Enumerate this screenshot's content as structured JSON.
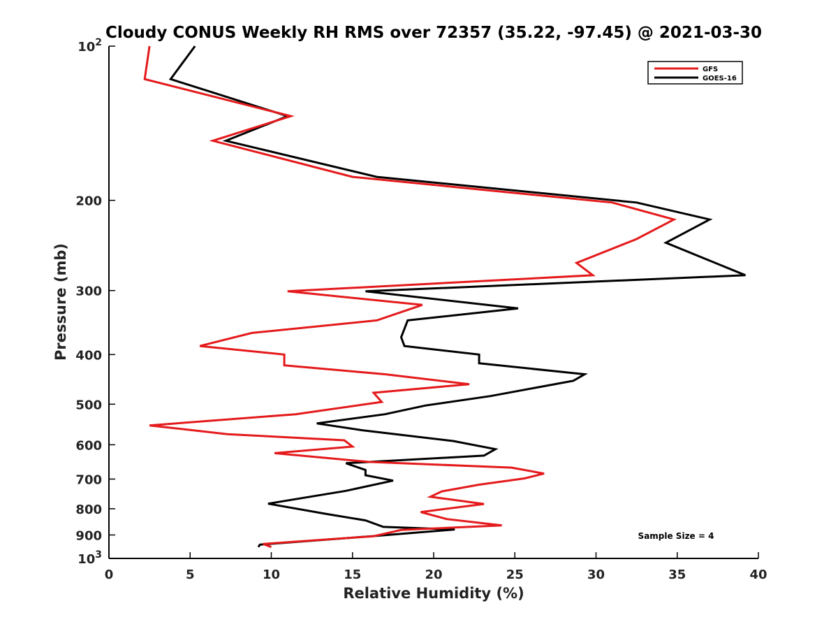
{
  "chart_data": {
    "type": "line",
    "title": "Cloudy CONUS Weekly RH RMS over 72357 (35.22, -97.45) @ 2021-03-30",
    "xlabel": "Relative Humidity (%)",
    "ylabel": "Pressure (mb)",
    "xlim": [
      0,
      40
    ],
    "ylim": [
      100,
      1000
    ],
    "y_scale": "log",
    "y_reversed": true,
    "grid": false,
    "legend_position": "top-right",
    "x_ticks": [
      0,
      5,
      10,
      15,
      20,
      25,
      30,
      35,
      40
    ],
    "x_tick_labels": [
      "0",
      "5",
      "10",
      "15",
      "20",
      "25",
      "30",
      "35",
      "40"
    ],
    "y_ticks": [
      100,
      200,
      300,
      400,
      500,
      600,
      700,
      800,
      900,
      1000
    ],
    "y_tick_labels": [
      {
        "base": "10",
        "exp": "2"
      },
      {
        "base": "200"
      },
      {
        "base": "300"
      },
      {
        "base": "400"
      },
      {
        "base": "500"
      },
      {
        "base": "600"
      },
      {
        "base": "700"
      },
      {
        "base": "800"
      },
      {
        "base": "900"
      },
      {
        "base": "10",
        "exp": "3"
      }
    ],
    "annotation": "Sample Size = 4",
    "series": [
      {
        "name": "GFS",
        "color": "#e41a1c",
        "points": [
          [
            2.5,
            100
          ],
          [
            2.2,
            116
          ],
          [
            11.2,
            137
          ],
          [
            6.4,
            153
          ],
          [
            15.0,
            180
          ],
          [
            31.0,
            202
          ],
          [
            34.8,
            218
          ],
          [
            32.5,
            238
          ],
          [
            28.8,
            265
          ],
          [
            29.8,
            280
          ],
          [
            11.0,
            301
          ],
          [
            19.3,
            320
          ],
          [
            16.5,
            343
          ],
          [
            8.8,
            363
          ],
          [
            5.6,
            385
          ],
          [
            10.8,
            400
          ],
          [
            10.8,
            420
          ],
          [
            17.0,
            437
          ],
          [
            22.2,
            457
          ],
          [
            16.3,
            475
          ],
          [
            16.8,
            495
          ],
          [
            11.5,
            523
          ],
          [
            2.5,
            550
          ],
          [
            7.3,
            572
          ],
          [
            14.5,
            588
          ],
          [
            15.0,
            605
          ],
          [
            10.2,
            623
          ],
          [
            16.0,
            648
          ],
          [
            24.8,
            665
          ],
          [
            26.8,
            683
          ],
          [
            25.6,
            698
          ],
          [
            22.8,
            718
          ],
          [
            20.5,
            740
          ],
          [
            19.8,
            758
          ],
          [
            23.1,
            783
          ],
          [
            19.2,
            812
          ],
          [
            20.8,
            838
          ],
          [
            24.2,
            862
          ],
          [
            18.0,
            880
          ],
          [
            16.3,
            905
          ],
          [
            9.5,
            937
          ],
          [
            10.0,
            950
          ]
        ]
      },
      {
        "name": "GOES-16",
        "color": "#000000",
        "points": [
          [
            5.3,
            100
          ],
          [
            3.8,
            116
          ],
          [
            11.0,
            137
          ],
          [
            7.2,
            153
          ],
          [
            16.5,
            180
          ],
          [
            32.5,
            202
          ],
          [
            37.0,
            218
          ],
          [
            34.3,
            242
          ],
          [
            39.2,
            280
          ],
          [
            15.8,
            301
          ],
          [
            25.2,
            325
          ],
          [
            18.4,
            343
          ],
          [
            18.0,
            370
          ],
          [
            18.2,
            385
          ],
          [
            22.8,
            400
          ],
          [
            22.8,
            416
          ],
          [
            29.3,
            437
          ],
          [
            28.6,
            450
          ],
          [
            23.5,
            482
          ],
          [
            19.5,
            503
          ],
          [
            17.0,
            523
          ],
          [
            12.8,
            545
          ],
          [
            15.6,
            562
          ],
          [
            21.2,
            590
          ],
          [
            23.8,
            612
          ],
          [
            23.1,
            630
          ],
          [
            14.6,
            652
          ],
          [
            15.8,
            672
          ],
          [
            15.8,
            688
          ],
          [
            17.5,
            705
          ],
          [
            14.6,
            738
          ],
          [
            9.8,
            782
          ],
          [
            13.3,
            818
          ],
          [
            15.8,
            843
          ],
          [
            16.9,
            868
          ],
          [
            21.3,
            878
          ],
          [
            16.2,
            905
          ],
          [
            9.3,
            940
          ],
          [
            9.2,
            950
          ]
        ]
      }
    ]
  }
}
